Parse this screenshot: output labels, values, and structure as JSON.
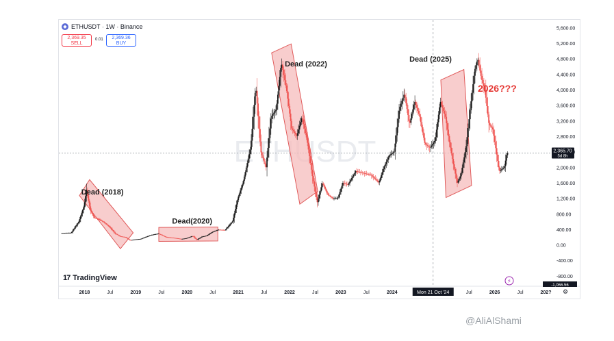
{
  "header": {
    "symbol_title": "ETHUSDT · 1W · Binance",
    "sell_price": "2,369.35",
    "sell_label": "SELL",
    "spread": "0.01",
    "buy_price": "2,369.36",
    "buy_label": "BUY"
  },
  "watermark": "ETHUSDT",
  "logo": {
    "text": "TradingView",
    "mark": "17"
  },
  "credit": {
    "text": "@AliAlShami"
  },
  "colors": {
    "up": "#26a69a",
    "down": "#ef5350",
    "candle": "#1a1a1a",
    "box_fill": "#f6bcbc",
    "box_stroke": "#e05a5a",
    "annotation_red": "#e53935"
  },
  "icons": [
    "eth-icon",
    "tradingview-logo-icon",
    "lightning-icon",
    "settings-icon"
  ],
  "chart_data": {
    "type": "candlestick",
    "title": "",
    "xlabel": "",
    "ylabel": "",
    "ylim": [
      -1066.56,
      5800
    ],
    "x_range": [
      "2017-06",
      "2027-01"
    ],
    "y_ticks": [
      "5,600.00",
      "5,200.00",
      "4,800.00",
      "4,400.00",
      "4,000.00",
      "3,600.00",
      "3,200.00",
      "2,800.00",
      "2,400.00",
      "2,000.00",
      "1,600.00",
      "1,200.00",
      "800.00",
      "400.00",
      "0.00",
      "-400.00",
      "-800.00"
    ],
    "y_tick_values": [
      5600,
      5200,
      4800,
      4400,
      4000,
      3600,
      3200,
      2800,
      2400,
      2000,
      1600,
      1200,
      800,
      400,
      0,
      -400,
      -800
    ],
    "x_ticks": [
      {
        "label": "2018",
        "t": 2018.0
      },
      {
        "label": "Jul",
        "t": 2018.5
      },
      {
        "label": "2019",
        "t": 2019.0
      },
      {
        "label": "Jul",
        "t": 2019.5
      },
      {
        "label": "2020",
        "t": 2020.0
      },
      {
        "label": "Jul",
        "t": 2020.5
      },
      {
        "label": "2021",
        "t": 2021.0
      },
      {
        "label": "Jul",
        "t": 2021.5
      },
      {
        "label": "2022",
        "t": 2022.0
      },
      {
        "label": "Jul",
        "t": 2022.5
      },
      {
        "label": "2023",
        "t": 2023.0
      },
      {
        "label": "Jul",
        "t": 2023.5
      },
      {
        "label": "2024",
        "t": 2024.0
      },
      {
        "label": "Jul",
        "t": 2025.5
      },
      {
        "label": "2026",
        "t": 2026.0
      },
      {
        "label": "Jul",
        "t": 2026.5
      },
      {
        "label": "202?",
        "t": 2027.0
      }
    ],
    "last_price": {
      "value": 2365.7,
      "label": "2,365.70",
      "countdown": "5d 8h"
    },
    "bottom_clipped_label": "-1,066.56",
    "crosshair": {
      "date_label": "Mon 21 Oct '24",
      "t": 2024.8
    },
    "price_path": [
      [
        2017.55,
        300
      ],
      [
        2017.75,
        310
      ],
      [
        2017.9,
        600
      ],
      [
        2018.0,
        1000
      ],
      [
        2018.05,
        1420
      ],
      [
        2018.12,
        900
      ],
      [
        2018.2,
        700
      ],
      [
        2018.3,
        650
      ],
      [
        2018.4,
        570
      ],
      [
        2018.5,
        460
      ],
      [
        2018.6,
        300
      ],
      [
        2018.7,
        220
      ],
      [
        2018.8,
        200
      ],
      [
        2018.9,
        120
      ],
      [
        2019.0,
        140
      ],
      [
        2019.1,
        150
      ],
      [
        2019.3,
        250
      ],
      [
        2019.45,
        290
      ],
      [
        2019.6,
        200
      ],
      [
        2019.75,
        180
      ],
      [
        2019.9,
        150
      ],
      [
        2020.0,
        170
      ],
      [
        2020.12,
        230
      ],
      [
        2020.2,
        130
      ],
      [
        2020.3,
        210
      ],
      [
        2020.4,
        240
      ],
      [
        2020.5,
        330
      ],
      [
        2020.62,
        390
      ],
      [
        2020.75,
        380
      ],
      [
        2020.9,
        610
      ],
      [
        2021.0,
        1200
      ],
      [
        2021.1,
        1600
      ],
      [
        2021.25,
        2500
      ],
      [
        2021.35,
        4100
      ],
      [
        2021.45,
        2400
      ],
      [
        2021.55,
        2000
      ],
      [
        2021.65,
        3300
      ],
      [
        2021.75,
        3500
      ],
      [
        2021.85,
        4700
      ],
      [
        2021.95,
        4000
      ],
      [
        2022.05,
        3000
      ],
      [
        2022.15,
        2800
      ],
      [
        2022.25,
        3300
      ],
      [
        2022.35,
        2700
      ],
      [
        2022.45,
        1800
      ],
      [
        2022.55,
        1100
      ],
      [
        2022.65,
        1600
      ],
      [
        2022.75,
        1300
      ],
      [
        2022.85,
        1200
      ],
      [
        2022.95,
        1200
      ],
      [
        2023.05,
        1600
      ],
      [
        2023.15,
        1550
      ],
      [
        2023.3,
        1900
      ],
      [
        2023.45,
        1850
      ],
      [
        2023.6,
        1800
      ],
      [
        2023.75,
        1600
      ],
      [
        2023.85,
        2000
      ],
      [
        2023.95,
        2300
      ],
      [
        2024.05,
        2400
      ],
      [
        2024.15,
        3500
      ],
      [
        2024.25,
        3900
      ],
      [
        2024.35,
        3100
      ],
      [
        2024.45,
        3700
      ],
      [
        2024.55,
        3300
      ],
      [
        2024.65,
        2600
      ],
      [
        2024.75,
        2500
      ],
      [
        2024.85,
        2700
      ],
      [
        2024.95,
        3700
      ],
      [
        2025.05,
        3300
      ],
      [
        2025.12,
        2700
      ],
      [
        2025.2,
        2100
      ],
      [
        2025.28,
        1600
      ],
      [
        2025.35,
        1800
      ],
      [
        2025.45,
        2500
      ],
      [
        2025.55,
        3700
      ],
      [
        2025.62,
        4500
      ],
      [
        2025.68,
        4800
      ],
      [
        2025.75,
        4300
      ],
      [
        2025.82,
        4000
      ],
      [
        2025.9,
        3100
      ],
      [
        2025.97,
        3000
      ],
      [
        2026.03,
        2500
      ],
      [
        2026.1,
        1900
      ],
      [
        2026.2,
        2000
      ],
      [
        2026.25,
        2370
      ]
    ],
    "annotations": [
      {
        "text": "Dead (2018)",
        "t": 2018.35,
        "y": 1300
      },
      {
        "text": "Dead(2020)",
        "t": 2020.1,
        "y": 550
      },
      {
        "text": "Dead (2022)",
        "t": 2022.32,
        "y": 4600
      },
      {
        "text": "Dead (2025)",
        "t": 2024.75,
        "y": 4720
      },
      {
        "text": "2026???",
        "t": 2026.05,
        "y": 3950
      }
    ],
    "boxes": [
      {
        "label": "Dead (2018)",
        "corners": [
          [
            2017.9,
            1270
          ],
          [
            2018.1,
            1680
          ],
          [
            2018.95,
            310
          ],
          [
            2018.7,
            -100
          ]
        ]
      },
      {
        "label": "Dead(2020)",
        "corners": [
          [
            2019.45,
            450
          ],
          [
            2020.6,
            460
          ],
          [
            2020.6,
            100
          ],
          [
            2019.45,
            90
          ]
        ]
      },
      {
        "label": "Dead (2022)",
        "corners": [
          [
            2021.65,
            4950
          ],
          [
            2022.03,
            5180
          ],
          [
            2022.55,
            1380
          ],
          [
            2022.2,
            1050
          ]
        ]
      },
      {
        "label": "Dead (2025)",
        "corners": [
          [
            2024.95,
            4250
          ],
          [
            2025.4,
            4520
          ],
          [
            2025.55,
            1530
          ],
          [
            2025.05,
            1220
          ]
        ]
      }
    ]
  }
}
